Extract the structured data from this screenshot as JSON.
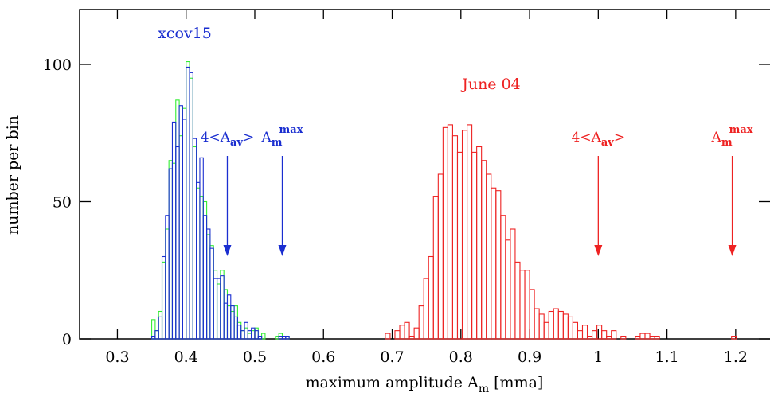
{
  "chart_data": {
    "type": "histogram",
    "xlabel": {
      "text": "maximum amplitude A",
      "sub": "m",
      "tail": " [mma]"
    },
    "ylabel": "number per bin",
    "xlim": [
      0.245,
      1.25
    ],
    "ylim": [
      0,
      120
    ],
    "xticks": [
      0.3,
      0.4,
      0.5,
      0.6,
      0.7,
      0.8,
      0.9,
      1,
      1.1,
      1.2
    ],
    "yticks": [
      0,
      50,
      100
    ],
    "series": [
      {
        "color": "#33ee33",
        "bins": [
          0.35,
          0.355,
          0.36,
          0.365,
          0.37,
          0.375,
          0.38,
          0.385,
          0.39,
          0.395,
          0.4,
          0.405,
          0.41,
          0.415,
          0.42,
          0.425,
          0.43,
          0.435,
          0.44,
          0.445,
          0.45,
          0.455,
          0.46,
          0.465,
          0.47,
          0.475,
          0.48,
          0.485,
          0.49,
          0.495,
          0.5,
          0.505,
          0.51,
          0.515,
          0.52,
          0.525,
          0.53,
          0.535,
          0.54,
          0.545,
          0.55
        ],
        "counts": [
          7,
          3,
          10,
          28,
          40,
          65,
          64,
          87,
          74,
          84,
          101,
          95,
          70,
          55,
          52,
          50,
          38,
          34,
          25,
          20,
          25,
          18,
          12,
          10,
          12,
          6,
          3,
          4,
          2,
          3,
          4,
          1,
          2,
          0,
          0,
          0,
          1,
          2,
          0,
          1
        ]
      },
      {
        "name": "xcov15",
        "color": "#1a2ed0",
        "bins": [
          0.35,
          0.355,
          0.36,
          0.365,
          0.37,
          0.375,
          0.38,
          0.385,
          0.39,
          0.395,
          0.4,
          0.405,
          0.41,
          0.415,
          0.42,
          0.425,
          0.43,
          0.435,
          0.44,
          0.445,
          0.45,
          0.455,
          0.46,
          0.465,
          0.47,
          0.475,
          0.48,
          0.485,
          0.49,
          0.495,
          0.5,
          0.505,
          0.51,
          0.515,
          0.52,
          0.525,
          0.53,
          0.535,
          0.54,
          0.545,
          0.55
        ],
        "counts": [
          1,
          3,
          8,
          30,
          45,
          62,
          79,
          70,
          85,
          80,
          99,
          97,
          73,
          57,
          66,
          45,
          40,
          33,
          22,
          22,
          23,
          13,
          16,
          12,
          8,
          5,
          3,
          6,
          3,
          4,
          3,
          1,
          0,
          0,
          0,
          0,
          0,
          1,
          1,
          1
        ]
      },
      {
        "name": "June 04",
        "color": "#ee2222",
        "bins": [
          0.69,
          0.697,
          0.704,
          0.711,
          0.718,
          0.725,
          0.732,
          0.739,
          0.746,
          0.753,
          0.76,
          0.767,
          0.774,
          0.781,
          0.788,
          0.795,
          0.802,
          0.809,
          0.816,
          0.823,
          0.83,
          0.837,
          0.844,
          0.851,
          0.858,
          0.865,
          0.872,
          0.879,
          0.886,
          0.893,
          0.9,
          0.907,
          0.914,
          0.921,
          0.928,
          0.935,
          0.942,
          0.949,
          0.956,
          0.963,
          0.97,
          0.977,
          0.984,
          0.991,
          0.998,
          1.005,
          1.012,
          1.019,
          1.026,
          1.033,
          1.04,
          1.047,
          1.054,
          1.061,
          1.068,
          1.075,
          1.082,
          1.089,
          1.096,
          1.103,
          1.11,
          1.117,
          1.124,
          1.131,
          1.138,
          1.145,
          1.152,
          1.159,
          1.166,
          1.173,
          1.18,
          1.187,
          1.194,
          1.201
        ],
        "counts": [
          2,
          0,
          3,
          5,
          6,
          1,
          4,
          12,
          22,
          30,
          52,
          60,
          77,
          78,
          74,
          68,
          76,
          78,
          68,
          70,
          65,
          60,
          55,
          54,
          45,
          36,
          40,
          28,
          25,
          25,
          18,
          11,
          9,
          6,
          10,
          11,
          10,
          9,
          8,
          6,
          3,
          5,
          1,
          3,
          5,
          3,
          1,
          3,
          0,
          1,
          0,
          0,
          1,
          2,
          2,
          1,
          1,
          0,
          0,
          0,
          0,
          0,
          0,
          0,
          0,
          0,
          0,
          0,
          0,
          0,
          0,
          0,
          1
        ]
      }
    ],
    "annotations": [
      {
        "text": "4<A",
        "sub": "av",
        "tail": ">",
        "x": 0.46,
        "color": "#1a2ed0"
      },
      {
        "text": "A",
        "sub": "m",
        "sup": "max",
        "x": 0.54,
        "color": "#1a2ed0"
      },
      {
        "text": "4<A",
        "sub": "av",
        "tail": ">",
        "x": 1.0,
        "color": "#ee2222"
      },
      {
        "text": "A",
        "sub": "m",
        "sup": "max",
        "x": 1.195,
        "color": "#ee2222"
      }
    ]
  }
}
